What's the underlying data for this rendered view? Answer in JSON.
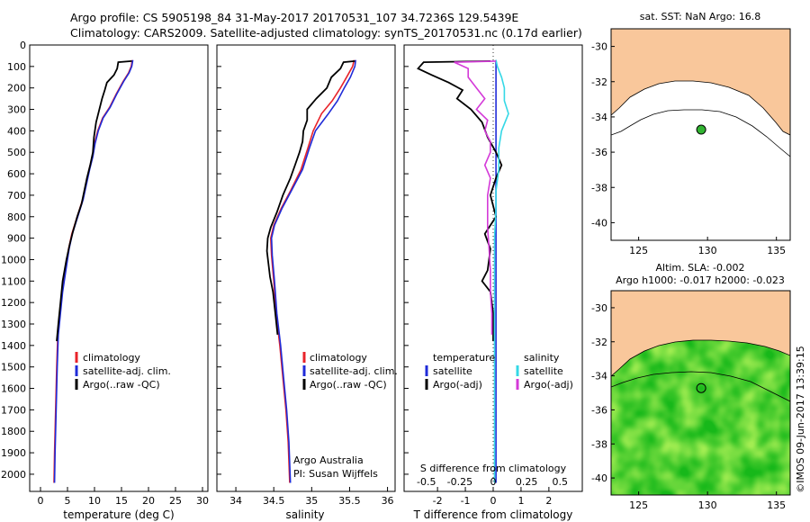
{
  "header": {
    "line1": "Argo profile: CS 5905198_84 31-May-2017 20170531_107 34.7236S 129.5439E",
    "line2": "Climatology: CARS2009. Satellite-adjusted climatology: synTS_20170531.nc (0.17d earlier)"
  },
  "colors": {
    "climatology": "#e8232a",
    "satellite": "#1f2bd8",
    "argo": "#000000",
    "salinity_satellite": "#35d8e6",
    "salinity_argo": "#d43ad8",
    "land": "#f9c79b",
    "marker": "#32b432"
  },
  "chart_data": [
    {
      "type": "line",
      "id": "temperature",
      "xlabel": "temperature (deg C)",
      "xlim": [
        -2,
        31
      ],
      "ylim": [
        2080,
        0
      ],
      "xticks": [
        0,
        5,
        10,
        15,
        20,
        25,
        30
      ],
      "yticks": [
        0,
        100,
        200,
        300,
        400,
        500,
        600,
        700,
        800,
        900,
        1000,
        1100,
        1200,
        1300,
        1400,
        1500,
        1600,
        1700,
        1800,
        1900,
        2000
      ],
      "legend": [
        "climatology",
        "satellite-adj. clim.",
        "Argo(..raw -QC)"
      ],
      "legend_position": "lower-center",
      "series": [
        {
          "name": "climatology",
          "color_key": "climatology",
          "points": [
            [
              17,
              70
            ],
            [
              16.8,
              100
            ],
            [
              16.3,
              130
            ],
            [
              15.3,
              170
            ],
            [
              14,
              230
            ],
            [
              12.8,
              290
            ],
            [
              11.5,
              340
            ],
            [
              10.6,
              400
            ],
            [
              10,
              460
            ],
            [
              9.6,
              520
            ],
            [
              9,
              580
            ],
            [
              8.4,
              650
            ],
            [
              7.8,
              720
            ],
            [
              6.8,
              800
            ],
            [
              5.8,
              880
            ],
            [
              5.2,
              950
            ],
            [
              4.6,
              1050
            ],
            [
              4,
              1150
            ],
            [
              3.6,
              1250
            ],
            [
              3.2,
              1350
            ],
            [
              3,
              1500
            ],
            [
              2.8,
              1700
            ],
            [
              2.6,
              1900
            ],
            [
              2.5,
              2040
            ]
          ]
        },
        {
          "name": "satellite-adj. clim.",
          "color_key": "satellite",
          "points": [
            [
              17.1,
              70
            ],
            [
              16.9,
              100
            ],
            [
              16.4,
              130
            ],
            [
              15.4,
              170
            ],
            [
              14.1,
              230
            ],
            [
              12.9,
              290
            ],
            [
              11.6,
              340
            ],
            [
              10.7,
              400
            ],
            [
              10.1,
              460
            ],
            [
              9.7,
              520
            ],
            [
              9.1,
              580
            ],
            [
              8.5,
              650
            ],
            [
              7.9,
              720
            ],
            [
              6.9,
              800
            ],
            [
              5.9,
              880
            ],
            [
              5.3,
              950
            ],
            [
              4.7,
              1050
            ],
            [
              4.1,
              1150
            ],
            [
              3.7,
              1250
            ],
            [
              3.3,
              1350
            ],
            [
              3.1,
              1500
            ],
            [
              2.9,
              1700
            ],
            [
              2.7,
              1900
            ],
            [
              2.6,
              2040
            ]
          ]
        },
        {
          "name": "Argo(..raw -QC)",
          "color_key": "argo",
          "points": [
            [
              16.9,
              75
            ],
            [
              14.4,
              80
            ],
            [
              14.2,
              110
            ],
            [
              13.6,
              140
            ],
            [
              12.3,
              175
            ],
            [
              11.9,
              210
            ],
            [
              11.4,
              250
            ],
            [
              10.9,
              300
            ],
            [
              10.3,
              360
            ],
            [
              9.9,
              430
            ],
            [
              9.7,
              500
            ],
            [
              9.2,
              560
            ],
            [
              8.6,
              620
            ],
            [
              8.1,
              680
            ],
            [
              7.6,
              740
            ],
            [
              6.8,
              800
            ],
            [
              6,
              870
            ],
            [
              5.4,
              930
            ],
            [
              4.8,
              1000
            ],
            [
              4.1,
              1100
            ],
            [
              3.7,
              1200
            ],
            [
              3.3,
              1300
            ],
            [
              3.0,
              1380
            ]
          ]
        }
      ]
    },
    {
      "type": "line",
      "id": "salinity",
      "xlabel": "salinity",
      "xlim": [
        33.75,
        36.1
      ],
      "ylim": [
        2080,
        0
      ],
      "xticks": [
        34,
        34.5,
        35,
        35.5,
        36
      ],
      "legend": [
        "climatology",
        "satellite-adj. clim.",
        "Argo(..raw -QC)"
      ],
      "legend_position": "lower-right",
      "annotation": [
        "Argo Australia",
        "PI: Susan Wijffels"
      ],
      "series": [
        {
          "name": "climatology",
          "color_key": "climatology",
          "points": [
            [
              35.56,
              70
            ],
            [
              35.54,
              100
            ],
            [
              35.46,
              150
            ],
            [
              35.38,
              200
            ],
            [
              35.27,
              260
            ],
            [
              35.13,
              320
            ],
            [
              35.02,
              400
            ],
            [
              34.95,
              480
            ],
            [
              34.86,
              580
            ],
            [
              34.72,
              680
            ],
            [
              34.6,
              760
            ],
            [
              34.5,
              840
            ],
            [
              34.46,
              900
            ],
            [
              34.47,
              980
            ],
            [
              34.5,
              1100
            ],
            [
              34.53,
              1250
            ],
            [
              34.58,
              1400
            ],
            [
              34.62,
              1550
            ],
            [
              34.66,
              1700
            ],
            [
              34.69,
              1850
            ],
            [
              34.71,
              2040
            ]
          ]
        },
        {
          "name": "satellite-adj. clim.",
          "color_key": "satellite",
          "points": [
            [
              35.58,
              70
            ],
            [
              35.57,
              100
            ],
            [
              35.51,
              150
            ],
            [
              35.43,
              200
            ],
            [
              35.34,
              260
            ],
            [
              35.22,
              320
            ],
            [
              35.05,
              400
            ],
            [
              34.97,
              480
            ],
            [
              34.88,
              580
            ],
            [
              34.73,
              680
            ],
            [
              34.61,
              760
            ],
            [
              34.51,
              840
            ],
            [
              34.47,
              900
            ],
            [
              34.48,
              980
            ],
            [
              34.51,
              1100
            ],
            [
              34.54,
              1250
            ],
            [
              34.59,
              1400
            ],
            [
              34.63,
              1550
            ],
            [
              34.67,
              1700
            ],
            [
              34.7,
              1850
            ],
            [
              34.72,
              2040
            ]
          ]
        },
        {
          "name": "Argo(..raw -QC)",
          "color_key": "argo",
          "points": [
            [
              35.57,
              75
            ],
            [
              35.42,
              80
            ],
            [
              35.38,
              110
            ],
            [
              35.26,
              150
            ],
            [
              35.2,
              200
            ],
            [
              35.06,
              250
            ],
            [
              34.94,
              300
            ],
            [
              34.94,
              350
            ],
            [
              34.89,
              400
            ],
            [
              34.88,
              450
            ],
            [
              34.84,
              500
            ],
            [
              34.78,
              560
            ],
            [
              34.72,
              620
            ],
            [
              34.62,
              700
            ],
            [
              34.54,
              780
            ],
            [
              34.46,
              850
            ],
            [
              34.42,
              900
            ],
            [
              34.41,
              960
            ],
            [
              34.43,
              1020
            ],
            [
              34.45,
              1080
            ],
            [
              34.49,
              1150
            ],
            [
              34.52,
              1250
            ],
            [
              34.55,
              1350
            ]
          ]
        }
      ]
    },
    {
      "type": "line",
      "id": "differences",
      "xlabel": "T difference from climatology",
      "xlabel_top": "S difference from climatology",
      "xlim": [
        -3.2,
        3.2
      ],
      "ylim": [
        2080,
        0
      ],
      "xticks_bottom": [
        -2,
        -1,
        0,
        1,
        2
      ],
      "xticks_top": [
        -0.5,
        -0.25,
        0,
        0.25,
        0.5
      ],
      "legend_left_title": "temperature",
      "legend_right_title": "salinity",
      "legend": [
        "satellite",
        "Argo(-adj)",
        "satellite",
        "Argo(-adj)"
      ],
      "series": [
        {
          "name": "T satellite",
          "color_key": "satellite",
          "points": [
            [
              0.1,
              70
            ],
            [
              0.1,
              150
            ],
            [
              0.1,
              250
            ],
            [
              0.1,
              350
            ],
            [
              0.1,
              450
            ],
            [
              0.1,
              600
            ],
            [
              0.1,
              800
            ],
            [
              0.1,
              1000
            ],
            [
              0.1,
              1200
            ],
            [
              0.1,
              1500
            ],
            [
              0.1,
              1800
            ],
            [
              0.1,
              2040
            ]
          ]
        },
        {
          "name": "T Argo(-adj)",
          "color_key": "argo",
          "points": [
            [
              -0.1,
              75
            ],
            [
              -2.5,
              80
            ],
            [
              -2.7,
              110
            ],
            [
              -2.2,
              140
            ],
            [
              -1.6,
              175
            ],
            [
              -1.1,
              210
            ],
            [
              -1.3,
              250
            ],
            [
              -0.8,
              300
            ],
            [
              -0.4,
              360
            ],
            [
              -0.2,
              430
            ],
            [
              0.1,
              500
            ],
            [
              0.3,
              560
            ],
            [
              0.1,
              620
            ],
            [
              -0.1,
              700
            ],
            [
              0.1,
              800
            ],
            [
              -0.3,
              880
            ],
            [
              -0.1,
              950
            ],
            [
              -0.2,
              1050
            ],
            [
              -0.4,
              1100
            ],
            [
              -0.1,
              1150
            ],
            [
              0,
              1250
            ],
            [
              0,
              1380
            ]
          ]
        },
        {
          "name": "S satellite",
          "color_key": "salinity_satellite",
          "points": [
            [
              0.1,
              70
            ],
            [
              0.15,
              100
            ],
            [
              0.3,
              150
            ],
            [
              0.4,
              200
            ],
            [
              0.4,
              260
            ],
            [
              0.55,
              320
            ],
            [
              0.3,
              400
            ],
            [
              0.2,
              480
            ],
            [
              0.2,
              580
            ],
            [
              0.1,
              680
            ],
            [
              0.1,
              760
            ],
            [
              0.05,
              900
            ],
            [
              0.05,
              1100
            ],
            [
              0.05,
              1400
            ],
            [
              0.05,
              1700
            ],
            [
              0.05,
              2040
            ]
          ]
        },
        {
          "name": "S Argo(-adj)",
          "color_key": "salinity_argo",
          "points": [
            [
              0.1,
              75
            ],
            [
              -1.4,
              80
            ],
            [
              -0.9,
              110
            ],
            [
              -0.9,
              150
            ],
            [
              -0.6,
              200
            ],
            [
              -0.3,
              250
            ],
            [
              -0.6,
              300
            ],
            [
              -0.2,
              350
            ],
            [
              -0.3,
              400
            ],
            [
              -0.1,
              450
            ],
            [
              -0.1,
              500
            ],
            [
              -0.3,
              560
            ],
            [
              -0.1,
              620
            ],
            [
              -0.2,
              700
            ],
            [
              -0.2,
              780
            ],
            [
              -0.2,
              850
            ],
            [
              -0.15,
              950
            ],
            [
              -0.1,
              1050
            ],
            [
              -0.1,
              1150
            ],
            [
              -0.05,
              1250
            ],
            [
              -0.05,
              1350
            ]
          ]
        }
      ]
    },
    {
      "type": "heatmap",
      "id": "sst_map",
      "title": "sat. SST: NaN Argo: 16.8",
      "xlim": [
        123,
        136
      ],
      "ylim": [
        -41,
        -29
      ],
      "xticks": [
        125,
        130,
        135
      ],
      "yticks": [
        -30,
        -32,
        -34,
        -36,
        -38,
        -40
      ],
      "marker": [
        129.54,
        -34.72
      ]
    },
    {
      "type": "heatmap",
      "id": "sla_map",
      "title_line1": "Altim. SLA: -0.002",
      "title_line2": "Argo h1000: -0.017 h2000: -0.023",
      "xlim": [
        123,
        136
      ],
      "ylim": [
        -41,
        -29
      ],
      "xticks": [
        125,
        130,
        135
      ],
      "yticks": [
        -30,
        -32,
        -34,
        -36,
        -38,
        -40
      ],
      "marker": [
        129.54,
        -34.72
      ]
    }
  ],
  "credit": "©IMOS 09-Jun-2017 13:39:15"
}
